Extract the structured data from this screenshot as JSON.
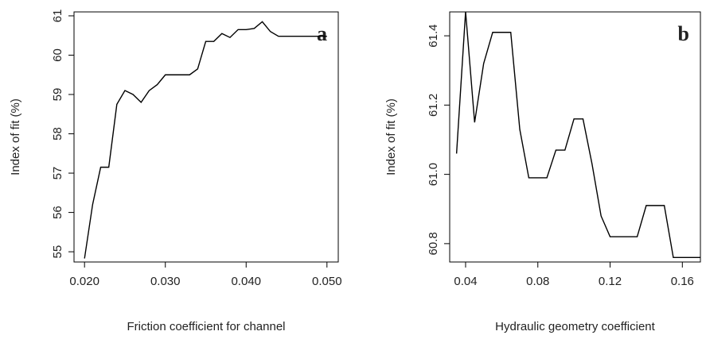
{
  "chart_data": [
    {
      "type": "line",
      "annotation": "a",
      "xlabel": "Friction coefficient for channel",
      "ylabel": "Index of fit (%)",
      "x": [
        0.02,
        0.021,
        0.022,
        0.023,
        0.024,
        0.025,
        0.026,
        0.027,
        0.028,
        0.029,
        0.03,
        0.031,
        0.032,
        0.033,
        0.034,
        0.035,
        0.036,
        0.037,
        0.038,
        0.039,
        0.04,
        0.041,
        0.042,
        0.043,
        0.044,
        0.045,
        0.046,
        0.047,
        0.048,
        0.049,
        0.05
      ],
      "series": [
        {
          "color": "#000000",
          "values": [
            54.83,
            56.2,
            57.15,
            57.15,
            58.75,
            59.1,
            59.0,
            58.8,
            59.1,
            59.25,
            59.5,
            59.5,
            59.5,
            59.5,
            59.65,
            60.35,
            60.35,
            60.55,
            60.45,
            60.65,
            60.65,
            60.68,
            60.85,
            60.6,
            60.48,
            60.48,
            60.48,
            60.48,
            60.48,
            60.48,
            60.48
          ]
        }
      ],
      "xlim": [
        0.0187,
        0.0514
      ],
      "ylim": [
        54.74,
        61.1
      ],
      "xticks": [
        {
          "value": 0.02,
          "label": "0.020"
        },
        {
          "value": 0.03,
          "label": "0.030"
        },
        {
          "value": 0.04,
          "label": "0.040"
        },
        {
          "value": 0.05,
          "label": "0.050"
        }
      ],
      "yticks": [
        55,
        56,
        57,
        58,
        59,
        60,
        61
      ]
    },
    {
      "type": "line",
      "annotation": "b",
      "xlabel": "Hydraulic geometry coefficient",
      "ylabel": "Index of fit (%)",
      "x": [
        0.035,
        0.04,
        0.045,
        0.05,
        0.055,
        0.06,
        0.065,
        0.07,
        0.075,
        0.08,
        0.085,
        0.09,
        0.095,
        0.1,
        0.105,
        0.11,
        0.115,
        0.12,
        0.125,
        0.13,
        0.135,
        0.14,
        0.145,
        0.15,
        0.155,
        0.16,
        0.165,
        0.17
      ],
      "series": [
        {
          "color": "#000000",
          "values": [
            61.06,
            61.47,
            61.15,
            61.32,
            61.41,
            61.41,
            61.41,
            61.13,
            60.99,
            60.99,
            60.99,
            61.07,
            61.07,
            61.16,
            61.16,
            61.03,
            60.88,
            60.82,
            60.82,
            60.82,
            60.82,
            60.91,
            60.91,
            60.91,
            60.76,
            60.76,
            60.76,
            60.76
          ]
        }
      ],
      "xlim": [
        0.0312,
        0.17
      ],
      "ylim": [
        60.747,
        61.469
      ],
      "xticks": [
        0.04,
        0.08,
        0.12,
        0.16
      ],
      "yticks": [
        60.8,
        {
          "value": 61,
          "label": "61.0"
        },
        61.2,
        61.4
      ]
    }
  ]
}
